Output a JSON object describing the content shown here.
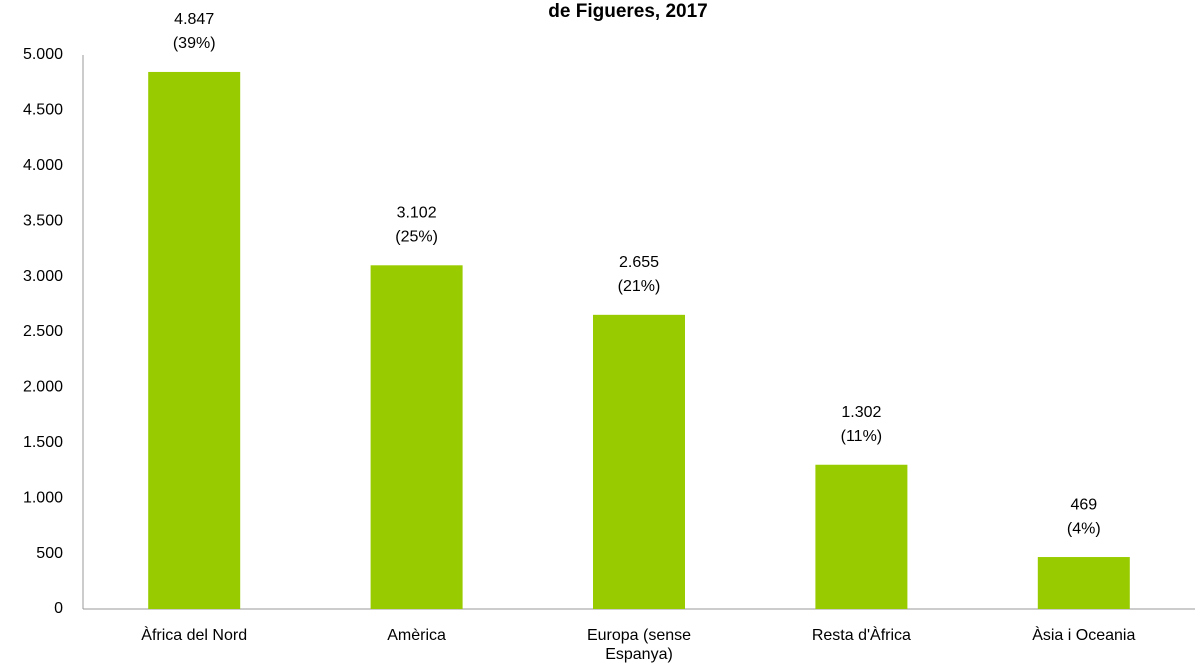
{
  "chart_data": {
    "type": "bar",
    "title": "de Figueres, 2017",
    "categories": [
      "Àfrica del Nord",
      "Amèrica",
      "Europa (sense Espanya)",
      "Resta d'Àfrica",
      "Àsia i Oceania"
    ],
    "values": [
      4847,
      3102,
      2655,
      1302,
      469
    ],
    "value_labels": [
      "4.847",
      "3.102",
      "2.655",
      "1.302",
      "469"
    ],
    "percent_labels": [
      "(39%)",
      "(25%)",
      "(21%)",
      "(11%)",
      "(4%)"
    ],
    "color": "#99cc00",
    "ylim": [
      0,
      5000
    ],
    "yticks": [
      0,
      500,
      {
        "value": 1000,
        "label": "1.000"
      },
      {
        "value": 1500,
        "label": "1.500"
      },
      {
        "value": 2000,
        "label": "2.000"
      },
      {
        "value": 2500,
        "label": "2.500"
      },
      {
        "value": 3000,
        "label": "3.000"
      },
      {
        "value": 3500,
        "label": "3.500"
      },
      {
        "value": 4000,
        "label": "4.000"
      },
      {
        "value": 4500,
        "label": "4.500"
      },
      {
        "value": 5000,
        "label": "5.000"
      }
    ],
    "grid": false
  }
}
